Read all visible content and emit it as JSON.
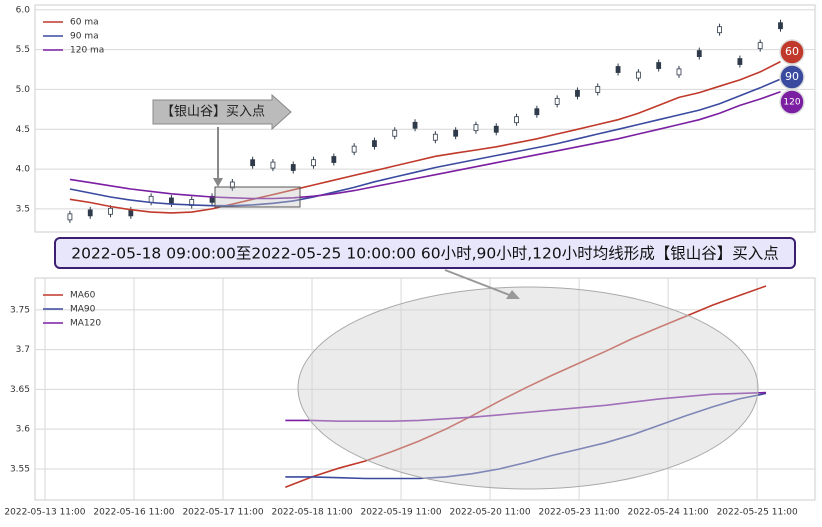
{
  "banner": "2022-05-18 09:00:00至2022-05-25 10:00:00 60小时,90小时,120小时均线形成【银山谷】买入点",
  "chart_data": [
    {
      "type": "line",
      "annotation": "【银山谷】买入点",
      "xlim": [
        -1.72,
        36.7
      ],
      "ylim": [
        3.21,
        6.06
      ],
      "yticks": [
        {
          "value": 3.5,
          "label": "3.5"
        },
        {
          "value": 4.0,
          "label": "4.0"
        },
        {
          "value": 4.5,
          "label": "4.5"
        },
        {
          "value": 5.0,
          "label": "5.0"
        },
        {
          "value": 5.5,
          "label": "5.5"
        },
        {
          "value": 6.0,
          "label": "6.0"
        }
      ],
      "grid": true,
      "legend": "upper left",
      "candles": {
        "color": "#2f3a4a",
        "values": [
          3.4,
          3.45,
          3.47,
          3.45,
          3.62,
          3.6,
          3.58,
          3.62,
          3.8,
          4.08,
          4.05,
          4.02,
          4.08,
          4.12,
          4.25,
          4.32,
          4.45,
          4.55,
          4.4,
          4.45,
          4.52,
          4.5,
          4.62,
          4.72,
          4.85,
          4.95,
          5.0,
          5.25,
          5.18,
          5.3,
          5.22,
          5.45,
          5.75,
          5.35,
          5.55,
          5.8
        ]
      },
      "series": [
        {
          "name": "60 ma",
          "badge": "60",
          "color": "#c0392b",
          "values": [
            3.62,
            3.58,
            3.53,
            3.49,
            3.46,
            3.45,
            3.46,
            3.5,
            3.56,
            3.62,
            3.68,
            3.74,
            3.8,
            3.86,
            3.92,
            3.98,
            4.04,
            4.1,
            4.16,
            4.2,
            4.24,
            4.28,
            4.33,
            4.38,
            4.44,
            4.5,
            4.56,
            4.62,
            4.7,
            4.8,
            4.9,
            4.96,
            5.04,
            5.12,
            5.22,
            5.35
          ]
        },
        {
          "name": "90 ma",
          "badge": "90",
          "color": "#3a4a9f",
          "values": [
            3.75,
            3.7,
            3.65,
            3.61,
            3.58,
            3.56,
            3.55,
            3.54,
            3.54,
            3.55,
            3.57,
            3.6,
            3.65,
            3.71,
            3.77,
            3.84,
            3.9,
            3.96,
            4.02,
            4.07,
            4.12,
            4.17,
            4.22,
            4.27,
            4.32,
            4.38,
            4.44,
            4.5,
            4.56,
            4.62,
            4.68,
            4.74,
            4.82,
            4.92,
            5.02,
            5.13
          ]
        },
        {
          "name": "120 ma",
          "badge": "120",
          "color": "#7b1fa2",
          "values": [
            3.87,
            3.83,
            3.79,
            3.75,
            3.72,
            3.69,
            3.67,
            3.65,
            3.64,
            3.63,
            3.63,
            3.64,
            3.66,
            3.69,
            3.73,
            3.78,
            3.83,
            3.88,
            3.93,
            3.98,
            4.03,
            4.08,
            4.13,
            4.18,
            4.23,
            4.28,
            4.33,
            4.38,
            4.44,
            4.5,
            4.56,
            4.62,
            4.7,
            4.8,
            4.88,
            4.97
          ]
        }
      ]
    },
    {
      "type": "line",
      "xlim": [
        -0.112,
        8.65
      ],
      "ylim": [
        3.511,
        3.79
      ],
      "xticks": [
        {
          "value": 0,
          "label": "2022-05-13 11:00"
        },
        {
          "value": 1,
          "label": "2022-05-16 11:00"
        },
        {
          "value": 2,
          "label": "2022-05-17 11:00"
        },
        {
          "value": 3,
          "label": "2022-05-18 11:00"
        },
        {
          "value": 4,
          "label": "2022-05-19 11:00"
        },
        {
          "value": 5,
          "label": "2022-05-20 11:00"
        },
        {
          "value": 6,
          "label": "2022-05-23 11:00"
        },
        {
          "value": 7,
          "label": "2022-05-24 11:00"
        },
        {
          "value": 8,
          "label": "2022-05-25 11:00"
        }
      ],
      "yticks": [
        3.55,
        3.6,
        3.65,
        3.7,
        3.75
      ],
      "grid": true,
      "legend": "upper left",
      "x": [
        2.7,
        3.0,
        3.3,
        3.6,
        3.9,
        4.2,
        4.5,
        4.8,
        5.1,
        5.4,
        5.7,
        6.0,
        6.3,
        6.6,
        6.9,
        7.2,
        7.5,
        7.8,
        8.1
      ],
      "series": [
        {
          "name": "MA60",
          "color": "#c0392b",
          "values": [
            3.527,
            3.54,
            3.551,
            3.56,
            3.572,
            3.585,
            3.6,
            3.617,
            3.635,
            3.652,
            3.668,
            3.683,
            3.698,
            3.714,
            3.728,
            3.742,
            3.756,
            3.768,
            3.78
          ]
        },
        {
          "name": "MA90",
          "color": "#3a4a9f",
          "values": [
            3.54,
            3.54,
            3.539,
            3.538,
            3.538,
            3.538,
            3.54,
            3.544,
            3.55,
            3.558,
            3.567,
            3.575,
            3.583,
            3.593,
            3.605,
            3.617,
            3.628,
            3.638,
            3.645
          ]
        },
        {
          "name": "MA120",
          "color": "#7b1fa2",
          "values": [
            3.611,
            3.611,
            3.61,
            3.61,
            3.61,
            3.611,
            3.613,
            3.615,
            3.618,
            3.621,
            3.624,
            3.627,
            3.63,
            3.634,
            3.638,
            3.641,
            3.644,
            3.645,
            3.646
          ]
        }
      ]
    }
  ]
}
